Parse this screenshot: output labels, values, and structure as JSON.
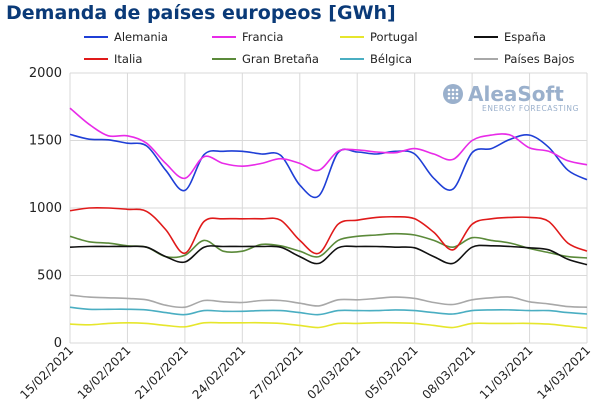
{
  "chart_data": {
    "type": "line",
    "title": "Demanda de países europeos [GWh]",
    "xlabel": "",
    "ylabel": "",
    "ylim": [
      0,
      2000
    ],
    "yticks": [
      0,
      500,
      1000,
      1500,
      2000
    ],
    "x": [
      "15/02/2021",
      "16/02/2021",
      "17/02/2021",
      "18/02/2021",
      "19/02/2021",
      "20/02/2021",
      "21/02/2021",
      "22/02/2021",
      "23/02/2021",
      "24/02/2021",
      "25/02/2021",
      "26/02/2021",
      "27/02/2021",
      "28/02/2021",
      "01/03/2021",
      "02/03/2021",
      "03/03/2021",
      "04/03/2021",
      "05/03/2021",
      "06/03/2021",
      "07/03/2021",
      "08/03/2021",
      "09/03/2021",
      "10/03/2021",
      "11/03/2021",
      "12/03/2021",
      "13/03/2021",
      "14/03/2021"
    ],
    "xtick_labels": [
      "15/02/2021",
      "18/02/2021",
      "21/02/2021",
      "24/02/2021",
      "27/02/2021",
      "02/03/2021",
      "05/03/2021",
      "08/03/2021",
      "11/03/2021",
      "14/03/2021"
    ],
    "grid": true,
    "legend": "top",
    "series": [
      {
        "name": "Alemania",
        "color": "#1f3fd6",
        "values": [
          1545,
          1510,
          1505,
          1480,
          1460,
          1280,
          1130,
          1395,
          1420,
          1420,
          1400,
          1390,
          1170,
          1090,
          1410,
          1415,
          1400,
          1420,
          1400,
          1220,
          1140,
          1410,
          1440,
          1510,
          1540,
          1450,
          1280,
          1210
        ]
      },
      {
        "name": "Francia",
        "color": "#e82be8",
        "values": [
          1740,
          1620,
          1535,
          1535,
          1480,
          1330,
          1220,
          1380,
          1330,
          1310,
          1330,
          1365,
          1330,
          1280,
          1420,
          1430,
          1415,
          1410,
          1440,
          1400,
          1360,
          1500,
          1540,
          1540,
          1445,
          1420,
          1350,
          1320
        ]
      },
      {
        "name": "Portugal",
        "color": "#e6e62c",
        "values": [
          140,
          135,
          145,
          150,
          145,
          130,
          120,
          150,
          150,
          150,
          150,
          145,
          130,
          115,
          145,
          145,
          150,
          150,
          145,
          130,
          115,
          145,
          145,
          145,
          145,
          140,
          125,
          110
        ]
      },
      {
        "name": "España",
        "color": "#111111",
        "values": [
          710,
          715,
          715,
          715,
          710,
          640,
          600,
          710,
          715,
          715,
          715,
          710,
          640,
          590,
          705,
          715,
          715,
          710,
          705,
          640,
          590,
          710,
          720,
          715,
          705,
          690,
          620,
          580
        ]
      },
      {
        "name": "Italia",
        "color": "#e01a1a",
        "values": [
          980,
          1000,
          1000,
          990,
          975,
          840,
          665,
          900,
          920,
          920,
          920,
          910,
          760,
          665,
          880,
          910,
          930,
          935,
          920,
          820,
          690,
          880,
          920,
          930,
          930,
          900,
          740,
          680
        ]
      },
      {
        "name": "Gran Bretaña",
        "color": "#5b8a3a",
        "values": [
          790,
          750,
          740,
          720,
          710,
          640,
          650,
          760,
          680,
          680,
          730,
          720,
          680,
          640,
          760,
          790,
          800,
          810,
          800,
          760,
          710,
          780,
          760,
          740,
          700,
          670,
          640,
          630
        ]
      },
      {
        "name": "Bélgica",
        "color": "#4aaec2",
        "values": [
          265,
          250,
          250,
          250,
          245,
          225,
          210,
          240,
          235,
          235,
          240,
          240,
          225,
          210,
          240,
          240,
          240,
          245,
          240,
          225,
          215,
          240,
          245,
          245,
          240,
          240,
          225,
          215
        ]
      },
      {
        "name": "Países Bajos",
        "color": "#a8a8a8",
        "values": [
          355,
          340,
          335,
          330,
          320,
          280,
          265,
          315,
          305,
          300,
          315,
          315,
          295,
          275,
          320,
          320,
          330,
          340,
          330,
          300,
          285,
          320,
          335,
          340,
          305,
          290,
          270,
          265
        ]
      }
    ]
  },
  "logo": {
    "name": "AleaSoft",
    "tagline": "ENERGY FORECASTING"
  }
}
